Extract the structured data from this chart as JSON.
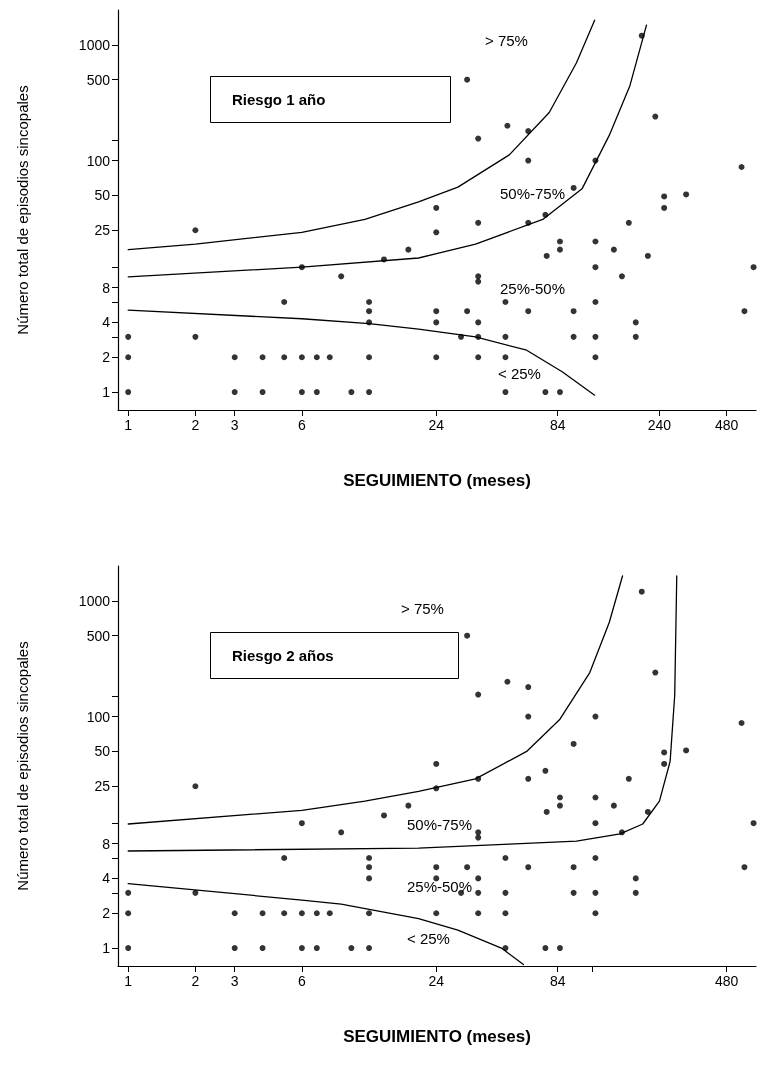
{
  "chart_data": [
    {
      "type": "scatter",
      "title": "Riesgo 1 año",
      "xlabel": "SEGUIMIENTO (meses)",
      "ylabel": "Número total de episodios sincopales",
      "log": "xy",
      "xlim": [
        0.9,
        650
      ],
      "ylim": [
        0.7,
        2000
      ],
      "xticks": [
        1,
        2,
        3,
        6,
        24,
        84,
        240,
        480
      ],
      "yticks": [
        1,
        2,
        {
          "value": 3,
          "label": null
        },
        4,
        {
          "value": 6,
          "label": null
        },
        8,
        {
          "value": 12,
          "label": null
        },
        25,
        50,
        100,
        {
          "value": 150,
          "label": null
        },
        500,
        1000
      ],
      "annotations": [
        "> 75%",
        "50%-75%",
        "25%-50%",
        "< 25%"
      ],
      "series": [
        {
          "type": "scatter",
          "color": "#000000",
          "marker": "circle",
          "x": [
            1,
            1,
            1,
            2,
            2,
            3,
            3,
            4,
            4,
            5,
            5,
            6,
            6,
            6,
            7,
            7,
            8,
            9,
            10,
            12,
            12,
            12,
            12,
            12,
            14,
            18,
            200,
            33,
            50,
            62,
            37,
            230,
            62,
            124,
            560,
            99,
            252,
            252,
            316,
            24,
            24,
            37,
            62,
            74,
            175,
            86,
            86,
            75,
            124,
            150,
            213,
            124,
            634,
            163,
            37,
            37,
            49,
            124,
            24,
            33,
            62,
            99,
            577,
            24,
            37,
            188,
            31,
            37,
            49,
            99,
            124,
            188,
            24,
            37,
            49,
            124,
            49,
            74,
            86
          ],
          "values": [
            3,
            2,
            1,
            25,
            3,
            2,
            1,
            2,
            1,
            6,
            2,
            12,
            2,
            1,
            2,
            1,
            2,
            10,
            1,
            6,
            5,
            4,
            2,
            1,
            14,
            17,
            1200,
            500,
            200,
            180,
            155,
            240,
            100,
            100,
            88,
            58,
            49,
            39,
            51,
            39,
            24,
            29,
            29,
            34,
            29,
            20,
            17,
            15,
            20,
            17,
            15,
            12,
            12,
            10,
            10,
            9,
            6,
            6,
            5,
            5,
            5,
            5,
            5,
            4,
            4,
            4,
            3,
            3,
            3,
            3,
            3,
            3,
            2,
            2,
            2,
            2,
            1,
            1,
            1
          ]
        },
        {
          "type": "line",
          "color": "#000000",
          "marker": "none",
          "line_style": "solid",
          "x": [
            1,
            2,
            6,
            11.5,
            20,
            30,
            51,
            77,
            102,
            123
          ],
          "values": [
            17,
            19,
            24,
            31,
            44,
            59,
            112,
            260,
            700,
            1630
          ]
        },
        {
          "type": "line",
          "color": "#000000",
          "marker": "none",
          "line_style": "solid",
          "x": [
            1,
            6,
            20,
            36,
            72,
            108,
            143,
            177,
            210
          ],
          "values": [
            9.9,
            12,
            14.4,
            19,
            31,
            57,
            165,
            444,
            1480
          ]
        },
        {
          "type": "line",
          "color": "#000000",
          "marker": "none",
          "line_style": "solid",
          "x": [
            1,
            6,
            12,
            20,
            36,
            61,
            88,
            123
          ],
          "values": [
            5.1,
            4.3,
            3.9,
            3.5,
            3.0,
            2.3,
            1.5,
            0.94
          ]
        }
      ]
    },
    {
      "type": "scatter",
      "title": "Riesgo 2 años",
      "xlabel": "SEGUIMIENTO (meses)",
      "ylabel": "Número total de episodios sincopales",
      "log": "xy",
      "xlim": [
        0.9,
        650
      ],
      "ylim": [
        0.7,
        2000
      ],
      "xticks": [
        1,
        2,
        3,
        6,
        24,
        84,
        {
          "value": 120,
          "label": null
        },
        480
      ],
      "yticks": [
        1,
        2,
        {
          "value": 3,
          "label": null
        },
        4,
        {
          "value": 6,
          "label": null
        },
        8,
        {
          "value": 12,
          "label": null
        },
        25,
        50,
        100,
        {
          "value": 150,
          "label": null
        },
        500,
        1000
      ],
      "annotations": [
        "> 75%",
        "50%-75%",
        "25%-50%",
        "< 25%"
      ],
      "series": [
        {
          "type": "scatter",
          "color": "#000000",
          "marker": "circle",
          "x": [
            1,
            1,
            1,
            2,
            2,
            3,
            3,
            4,
            4,
            5,
            5,
            6,
            6,
            6,
            7,
            7,
            8,
            9,
            10,
            12,
            12,
            12,
            12,
            12,
            14,
            18,
            200,
            33,
            50,
            62,
            37,
            230,
            62,
            124,
            560,
            99,
            252,
            252,
            316,
            24,
            24,
            37,
            62,
            74,
            175,
            86,
            86,
            75,
            124,
            150,
            213,
            124,
            634,
            163,
            37,
            37,
            49,
            124,
            24,
            33,
            62,
            99,
            577,
            24,
            37,
            188,
            31,
            37,
            49,
            99,
            124,
            188,
            24,
            37,
            49,
            124,
            49,
            74,
            86
          ],
          "values": [
            3,
            2,
            1,
            25,
            3,
            2,
            1,
            2,
            1,
            6,
            2,
            12,
            2,
            1,
            2,
            1,
            2,
            10,
            1,
            6,
            5,
            4,
            2,
            1,
            14,
            17,
            1200,
            500,
            200,
            180,
            155,
            240,
            100,
            100,
            88,
            58,
            49,
            39,
            51,
            39,
            24,
            29,
            29,
            34,
            29,
            20,
            17,
            15,
            20,
            17,
            15,
            12,
            12,
            10,
            10,
            9,
            6,
            6,
            5,
            5,
            5,
            5,
            5,
            4,
            4,
            4,
            3,
            3,
            3,
            3,
            3,
            3,
            2,
            2,
            2,
            2,
            1,
            1,
            1
          ]
        },
        {
          "type": "line",
          "color": "#000000",
          "marker": "none",
          "line_style": "solid",
          "x": [
            1,
            6,
            11.5,
            20,
            36,
            61,
            86,
            117,
            143,
            164
          ],
          "values": [
            11.8,
            15.5,
            18.6,
            22.6,
            29,
            50,
            95,
            240,
            650,
            1640
          ]
        },
        {
          "type": "line",
          "color": "#000000",
          "marker": "none",
          "line_style": "solid",
          "x": [
            1,
            20,
            51,
            102,
            160,
            202,
            240,
            268,
            281,
            287
          ],
          "values": [
            6.9,
            7.3,
            7.9,
            8.4,
            9.7,
            11.8,
            18.6,
            41,
            153,
            1640
          ]
        },
        {
          "type": "line",
          "color": "#000000",
          "marker": "none",
          "line_style": "solid",
          "x": [
            1,
            6,
            9,
            20,
            30,
            47,
            59
          ],
          "values": [
            3.6,
            2.6,
            2.4,
            1.8,
            1.43,
            1.0,
            0.72
          ]
        }
      ]
    }
  ]
}
